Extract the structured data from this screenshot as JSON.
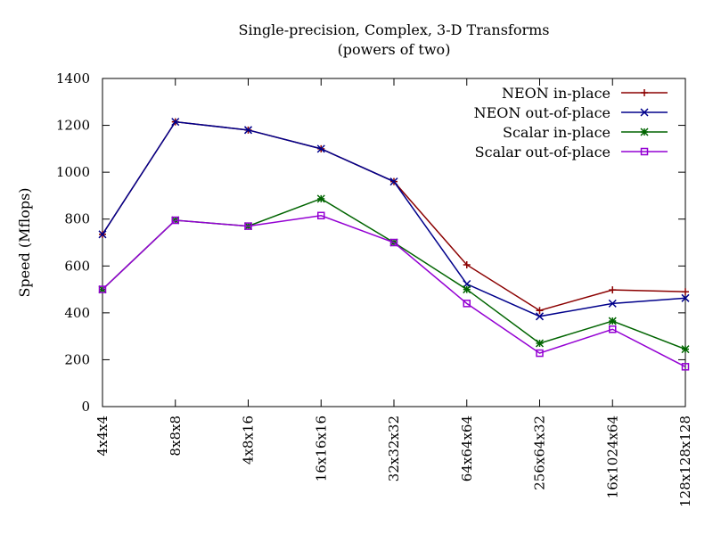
{
  "chart_data": {
    "type": "line",
    "title": "Single-precision, Complex, 3-D Transforms",
    "subtitle": "(powers of two)",
    "xlabel": "",
    "ylabel": "Speed (Mflops)",
    "ylim": [
      0,
      1400
    ],
    "yticks": [
      0,
      200,
      400,
      600,
      800,
      1000,
      1200,
      1400
    ],
    "categories": [
      "4x4x4",
      "8x8x8",
      "4x8x16",
      "16x16x16",
      "32x32x32",
      "64x64x64",
      "256x64x32",
      "16x1024x64",
      "128x128x128"
    ],
    "grid": false,
    "legend_position": "top-right",
    "series": [
      {
        "name": "NEON in-place",
        "color": "#8b0000",
        "marker": "plus",
        "values": [
          735,
          1215,
          1180,
          1100,
          960,
          605,
          410,
          498,
          490
        ]
      },
      {
        "name": "NEON out-of-place",
        "color": "#00008b",
        "marker": "cross",
        "values": [
          735,
          1215,
          1180,
          1100,
          960,
          523,
          385,
          440,
          463
        ]
      },
      {
        "name": "Scalar in-place",
        "color": "#006400",
        "marker": "star",
        "values": [
          500,
          795,
          770,
          887,
          700,
          500,
          270,
          365,
          245
        ]
      },
      {
        "name": "Scalar out-of-place",
        "color": "#9400d3",
        "marker": "square",
        "values": [
          500,
          795,
          770,
          815,
          700,
          440,
          228,
          330,
          170
        ]
      }
    ]
  }
}
